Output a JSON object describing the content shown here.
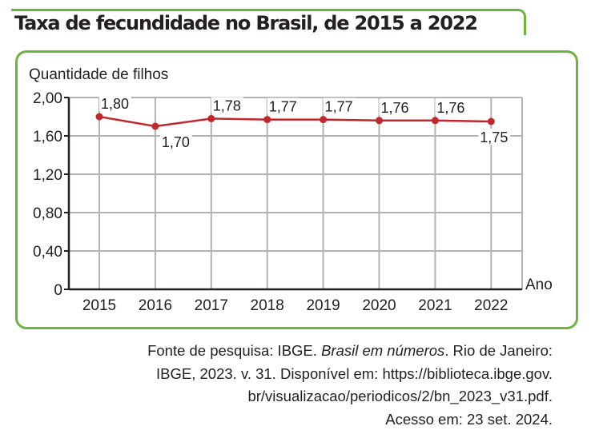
{
  "title": "Taxa de fecundidade no Brasil, de 2015 a 2022",
  "chart_data": {
    "type": "line",
    "title": "Taxa de fecundidade no Brasil, de 2015 a 2022",
    "ylabel": "Quantidade de filhos",
    "xlabel": "Ano",
    "categories": [
      "2015",
      "2016",
      "2017",
      "2018",
      "2019",
      "2020",
      "2021",
      "2022"
    ],
    "values": [
      1.8,
      1.7,
      1.78,
      1.77,
      1.77,
      1.76,
      1.76,
      1.75
    ],
    "data_labels": [
      "1,80",
      "1,70",
      "1,78",
      "1,77",
      "1,77",
      "1,76",
      "1,76",
      "1,75"
    ],
    "yticks": [
      0,
      0.4,
      0.8,
      1.2,
      1.6,
      2.0
    ],
    "ytick_labels": [
      "0",
      "0,40",
      "0,80",
      "1,20",
      "1,60",
      "2,00"
    ],
    "ylim": [
      0,
      2.0
    ],
    "grid": true,
    "line_color": "#c1272d",
    "frame_color": "#6cb33f"
  },
  "source": {
    "lines": [
      {
        "pre": "Fonte de pesquisa: IBGE. ",
        "italic": "Brasil em números",
        "post": ". Rio de Janeiro:"
      },
      {
        "pre": "IBGE, 2023. v. 31. Disponível em: https://biblioteca.ibge.gov.",
        "italic": "",
        "post": ""
      },
      {
        "pre": "br/visualizacao/periodicos/2/bn_2023_v31.pdf.",
        "italic": "",
        "post": ""
      },
      {
        "pre": "Acesso em: 23 set. 2024.",
        "italic": "",
        "post": ""
      }
    ]
  }
}
